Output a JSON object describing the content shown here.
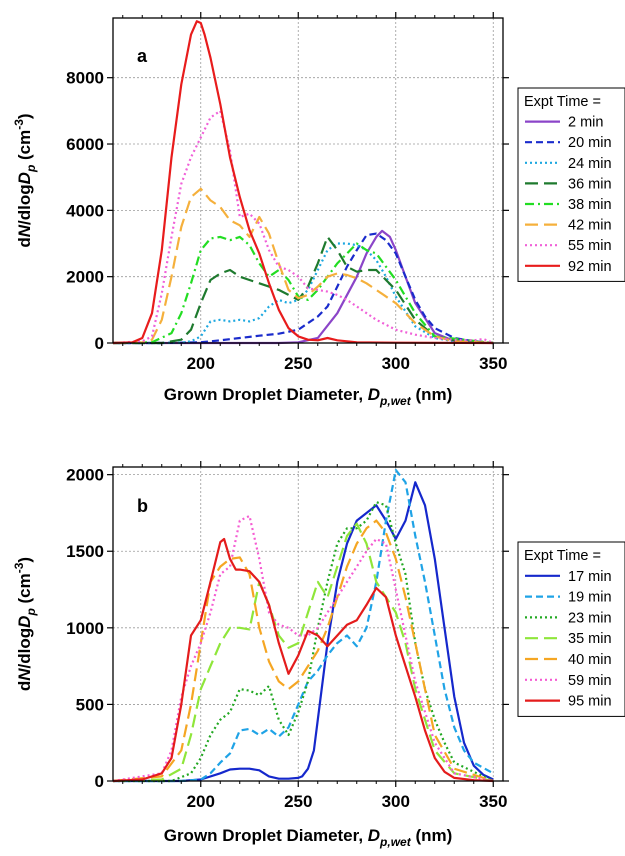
{
  "chart_data": [
    {
      "type": "line",
      "panel_label": "a",
      "xlabel": "Grown Droplet Diameter, D_p,wet (nm)",
      "xlabel_parts": {
        "main": "Grown Droplet Diameter, ",
        "var": "D",
        "sub": "p,wet",
        "unit": " (nm)"
      },
      "ylabel": "dN/dlogD_p (cm^-3)",
      "xlim": [
        155,
        355
      ],
      "ylim": [
        0,
        9800
      ],
      "xticks": [
        200,
        250,
        300,
        350
      ],
      "yticks": [
        0,
        2000,
        4000,
        6000,
        8000
      ],
      "xtick_labels": [
        "200",
        "250",
        "300",
        "350"
      ],
      "ytick_labels": [
        "0",
        "2000",
        "4000",
        "6000",
        "8000"
      ],
      "grid": true,
      "legend_title": "Expt Time =",
      "legend_position": "right",
      "series": [
        {
          "name": "2 min",
          "color": "#8b45c8",
          "dash": "solid",
          "x": [
            155,
            240,
            250,
            260,
            270,
            280,
            285,
            290,
            293,
            297,
            300,
            305,
            310,
            320,
            330,
            340,
            350
          ],
          "y": [
            0,
            0,
            20,
            150,
            900,
            2000,
            2700,
            3200,
            3380,
            3200,
            2800,
            2000,
            1200,
            300,
            60,
            20,
            0
          ]
        },
        {
          "name": "20 min",
          "color": "#1a2bcc",
          "dash": "dash",
          "x": [
            155,
            180,
            200,
            210,
            220,
            230,
            240,
            250,
            255,
            260,
            265,
            270,
            275,
            280,
            285,
            290,
            295,
            300,
            305,
            310,
            315,
            320,
            330,
            340,
            350
          ],
          "y": [
            0,
            0,
            20,
            80,
            150,
            220,
            280,
            400,
            600,
            800,
            1100,
            1700,
            2300,
            2800,
            3250,
            3300,
            3100,
            2700,
            2000,
            1300,
            800,
            450,
            150,
            50,
            0
          ]
        },
        {
          "name": "24 min",
          "color": "#1da8e0",
          "dash": "dot",
          "x": [
            155,
            180,
            190,
            195,
            200,
            205,
            210,
            215,
            220,
            225,
            230,
            235,
            240,
            245,
            250,
            255,
            260,
            265,
            270,
            275,
            280,
            285,
            290,
            295,
            300,
            310,
            320,
            330,
            350
          ],
          "y": [
            0,
            0,
            10,
            50,
            200,
            650,
            700,
            650,
            700,
            650,
            750,
            1100,
            1300,
            1200,
            1300,
            1600,
            2200,
            2800,
            3000,
            3000,
            2950,
            2800,
            2500,
            2000,
            1400,
            500,
            150,
            50,
            0
          ]
        },
        {
          "name": "36 min",
          "color": "#1e7a2e",
          "dash": "longdash",
          "x": [
            155,
            180,
            190,
            195,
            200,
            205,
            210,
            215,
            220,
            225,
            230,
            235,
            240,
            245,
            250,
            255,
            260,
            265,
            270,
            275,
            280,
            285,
            290,
            295,
            300,
            310,
            320,
            330,
            350
          ],
          "y": [
            0,
            0,
            100,
            400,
            1200,
            1900,
            2100,
            2200,
            2000,
            1900,
            1800,
            1700,
            1600,
            1450,
            1300,
            1700,
            2400,
            3200,
            2800,
            2300,
            2150,
            2200,
            2200,
            1900,
            1600,
            700,
            200,
            80,
            0
          ]
        },
        {
          "name": "38 min",
          "color": "#22dd22",
          "dash": "dashdot",
          "x": [
            155,
            175,
            185,
            190,
            195,
            200,
            205,
            210,
            215,
            220,
            225,
            230,
            235,
            240,
            245,
            250,
            255,
            260,
            265,
            270,
            275,
            280,
            285,
            290,
            295,
            300,
            305,
            310,
            320,
            350
          ],
          "y": [
            0,
            20,
            300,
            900,
            1800,
            2800,
            3150,
            3200,
            3100,
            3200,
            2950,
            2400,
            2000,
            2200,
            1900,
            1400,
            1300,
            1600,
            2000,
            2400,
            2700,
            3000,
            2800,
            2700,
            2300,
            1900,
            1400,
            900,
            200,
            0
          ]
        },
        {
          "name": "42 min",
          "color": "#f5b03c",
          "dash": "longdash",
          "x": [
            155,
            170,
            175,
            180,
            185,
            190,
            195,
            200,
            205,
            210,
            215,
            220,
            225,
            230,
            235,
            240,
            245,
            250,
            255,
            260,
            265,
            270,
            275,
            280,
            285,
            290,
            300,
            310,
            320,
            330,
            350
          ],
          "y": [
            0,
            20,
            100,
            700,
            2000,
            3500,
            4400,
            4650,
            4300,
            4100,
            3700,
            3550,
            3200,
            3800,
            3300,
            2400,
            1600,
            1350,
            1450,
            1700,
            2000,
            2100,
            2050,
            1950,
            1800,
            1600,
            1200,
            600,
            200,
            50,
            0
          ]
        },
        {
          "name": "55 min",
          "color": "#f060d8",
          "dash": "dot",
          "x": [
            155,
            170,
            175,
            180,
            185,
            190,
            195,
            200,
            205,
            210,
            215,
            220,
            225,
            230,
            235,
            240,
            245,
            250,
            255,
            260,
            265,
            270,
            275,
            280,
            290,
            300,
            310,
            320,
            330,
            340,
            345,
            350
          ],
          "y": [
            0,
            50,
            200,
            1500,
            3200,
            4800,
            5600,
            6200,
            6800,
            7000,
            5800,
            3800,
            3900,
            3600,
            2800,
            2300,
            2200,
            2000,
            1650,
            1600,
            1550,
            1450,
            1300,
            1100,
            700,
            400,
            250,
            150,
            100,
            80,
            120,
            0
          ]
        },
        {
          "name": "92 min",
          "color": "#e81c1c",
          "dash": "solid",
          "x": [
            155,
            165,
            170,
            175,
            180,
            185,
            190,
            195,
            198,
            200,
            202,
            205,
            210,
            215,
            220,
            225,
            230,
            235,
            240,
            245,
            250,
            255,
            260,
            265,
            270,
            280,
            300,
            350
          ],
          "y": [
            0,
            20,
            150,
            900,
            2800,
            5600,
            7800,
            9300,
            9700,
            9650,
            9300,
            8600,
            7200,
            5600,
            4400,
            3400,
            2700,
            1800,
            1000,
            450,
            200,
            100,
            80,
            150,
            80,
            20,
            10,
            0
          ]
        }
      ]
    },
    {
      "type": "line",
      "panel_label": "b",
      "xlabel": "Grown Droplet Diameter, D_p,wet (nm)",
      "xlabel_parts": {
        "main": "Grown Droplet Diameter, ",
        "var": "D",
        "sub": "p,wet",
        "unit": " (nm)"
      },
      "ylabel": "dN/dlogD_p (cm^-3)",
      "xlim": [
        155,
        355
      ],
      "ylim": [
        0,
        2050
      ],
      "xticks": [
        200,
        250,
        300,
        350
      ],
      "yticks": [
        0,
        500,
        1000,
        1500,
        2000
      ],
      "xtick_labels": [
        "200",
        "250",
        "300",
        "350"
      ],
      "ytick_labels": [
        "0",
        "500",
        "1000",
        "1500",
        "2000"
      ],
      "grid": true,
      "legend_title": "Expt Time =",
      "legend_position": "right",
      "series": [
        {
          "name": "17 min",
          "color": "#1528cc",
          "dash": "solid",
          "x": [
            155,
            190,
            200,
            210,
            215,
            220,
            225,
            230,
            235,
            240,
            245,
            250,
            252,
            255,
            258,
            260,
            265,
            270,
            275,
            280,
            285,
            290,
            295,
            300,
            305,
            310,
            315,
            320,
            325,
            330,
            335,
            340,
            345,
            350
          ],
          "y": [
            0,
            0,
            10,
            50,
            75,
            80,
            80,
            70,
            30,
            15,
            15,
            20,
            30,
            80,
            200,
            400,
            900,
            1300,
            1550,
            1700,
            1750,
            1800,
            1700,
            1580,
            1700,
            1950,
            1800,
            1450,
            1000,
            550,
            250,
            100,
            40,
            10
          ]
        },
        {
          "name": "19 min",
          "color": "#1fa3e6",
          "dash": "dash",
          "x": [
            155,
            190,
            200,
            205,
            210,
            215,
            220,
            225,
            230,
            235,
            240,
            245,
            250,
            255,
            260,
            265,
            270,
            275,
            280,
            285,
            290,
            295,
            300,
            305,
            310,
            315,
            320,
            325,
            330,
            335,
            340,
            350
          ],
          "y": [
            0,
            0,
            10,
            50,
            120,
            180,
            330,
            340,
            300,
            340,
            290,
            350,
            500,
            650,
            720,
            820,
            900,
            950,
            880,
            1000,
            1300,
            1700,
            2030,
            1950,
            1600,
            1300,
            950,
            600,
            350,
            200,
            120,
            50
          ]
        },
        {
          "name": "23 min",
          "color": "#22a822",
          "dash": "dot",
          "x": [
            155,
            185,
            195,
            200,
            205,
            210,
            215,
            220,
            225,
            230,
            235,
            240,
            245,
            250,
            255,
            260,
            265,
            270,
            275,
            280,
            285,
            290,
            295,
            300,
            305,
            310,
            315,
            320,
            325,
            330,
            350
          ],
          "y": [
            0,
            0,
            50,
            150,
            300,
            400,
            450,
            600,
            590,
            560,
            620,
            400,
            300,
            450,
            650,
            1000,
            1300,
            1550,
            1650,
            1650,
            1700,
            1820,
            1800,
            1550,
            1350,
            900,
            600,
            400,
            250,
            120,
            0
          ]
        },
        {
          "name": "35 min",
          "color": "#8fe63a",
          "dash": "longdash",
          "x": [
            155,
            180,
            190,
            195,
            200,
            205,
            210,
            215,
            220,
            225,
            230,
            235,
            240,
            245,
            250,
            255,
            260,
            265,
            270,
            275,
            280,
            285,
            290,
            295,
            300,
            305,
            310,
            315,
            320,
            330,
            350
          ],
          "y": [
            0,
            10,
            80,
            300,
            600,
            750,
            900,
            1000,
            1000,
            990,
            1300,
            1150,
            950,
            870,
            900,
            1100,
            1300,
            1200,
            1400,
            1600,
            1680,
            1550,
            1300,
            1200,
            1100,
            900,
            600,
            400,
            200,
            50,
            0
          ]
        },
        {
          "name": "40 min",
          "color": "#f5a623",
          "dash": "longdash",
          "x": [
            155,
            180,
            190,
            195,
            200,
            205,
            210,
            215,
            220,
            225,
            230,
            235,
            240,
            245,
            250,
            255,
            260,
            265,
            270,
            275,
            280,
            285,
            290,
            295,
            300,
            305,
            310,
            315,
            320,
            330,
            350
          ],
          "y": [
            0,
            30,
            200,
            500,
            900,
            1300,
            1400,
            1450,
            1460,
            1350,
            1000,
            780,
            650,
            600,
            650,
            750,
            850,
            1000,
            1200,
            1400,
            1550,
            1650,
            1700,
            1620,
            1450,
            1200,
            900,
            600,
            300,
            80,
            0
          ]
        },
        {
          "name": "59 min",
          "color": "#f55cd2",
          "dash": "dot",
          "x": [
            155,
            180,
            185,
            190,
            195,
            200,
            205,
            210,
            215,
            220,
            225,
            230,
            235,
            240,
            245,
            250,
            255,
            260,
            265,
            270,
            275,
            280,
            285,
            290,
            295,
            300,
            305,
            310,
            320,
            330,
            350
          ],
          "y": [
            0,
            50,
            200,
            550,
            750,
            900,
            1100,
            1350,
            1400,
            1700,
            1730,
            1450,
            1100,
            1020,
            1000,
            950,
            950,
            1000,
            1100,
            1200,
            1300,
            1400,
            1500,
            1580,
            1550,
            1250,
            950,
            650,
            250,
            50,
            0
          ]
        },
        {
          "name": "95 min",
          "color": "#e41c1c",
          "dash": "solid",
          "x": [
            155,
            170,
            180,
            185,
            190,
            195,
            200,
            205,
            210,
            212,
            215,
            218,
            220,
            225,
            230,
            235,
            240,
            245,
            250,
            255,
            260,
            265,
            270,
            275,
            280,
            285,
            290,
            295,
            300,
            305,
            310,
            315,
            320,
            325,
            330,
            340,
            350
          ],
          "y": [
            0,
            10,
            50,
            150,
            500,
            950,
            1050,
            1300,
            1560,
            1580,
            1450,
            1380,
            1380,
            1370,
            1300,
            1150,
            900,
            700,
            820,
            980,
            950,
            880,
            950,
            1020,
            1050,
            1150,
            1260,
            1200,
            950,
            750,
            550,
            330,
            150,
            60,
            20,
            5,
            0
          ]
        }
      ]
    }
  ]
}
